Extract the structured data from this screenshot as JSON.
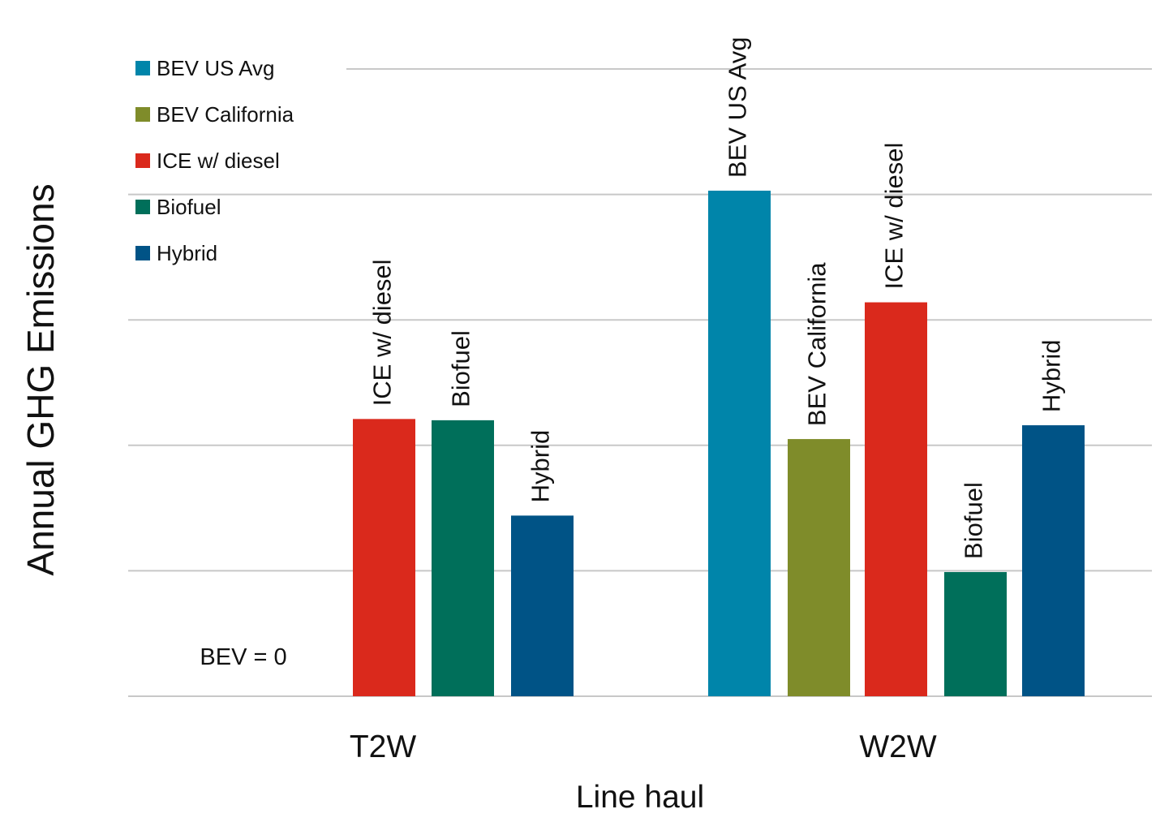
{
  "chart_data": {
    "type": "bar",
    "title": "",
    "ylabel": "Annual GHG Emissions",
    "xlabel": "Line haul",
    "ylim": [
      0,
      5
    ],
    "yticks": [
      0,
      1,
      2,
      3,
      4,
      5
    ],
    "ytick_labels_shown": false,
    "grid": true,
    "legend_position": "top-left",
    "legend": [
      {
        "name": "BEV US Avg",
        "color": "#0085AA"
      },
      {
        "name": "BEV California",
        "color": "#7F8C2A"
      },
      {
        "name": "ICE w/ diesel",
        "color": "#DA291C"
      },
      {
        "name": "Biofuel",
        "color": "#006F5A"
      },
      {
        "name": "Hybrid",
        "color": "#005386"
      }
    ],
    "categories": [
      "T2W",
      "W2W"
    ],
    "groups": [
      {
        "category": "T2W",
        "annotation": "BEV = 0",
        "bars": [
          {
            "series": "ICE w/ diesel",
            "label": "ICE w/ diesel",
            "value": 2.21,
            "color": "#DA291C"
          },
          {
            "series": "Biofuel",
            "label": "Biofuel",
            "value": 2.2,
            "color": "#006F5A"
          },
          {
            "series": "Hybrid",
            "label": "Hybrid",
            "value": 1.44,
            "color": "#005386"
          }
        ]
      },
      {
        "category": "W2W",
        "annotation": "",
        "bars": [
          {
            "series": "BEV US Avg",
            "label": "BEV US Avg",
            "value": 4.03,
            "color": "#0085AA"
          },
          {
            "series": "BEV California",
            "label": "BEV California",
            "value": 2.05,
            "color": "#7F8C2A"
          },
          {
            "series": "ICE w/ diesel",
            "label": "ICE w/ diesel",
            "value": 3.14,
            "color": "#DA291C"
          },
          {
            "series": "Biofuel",
            "label": "Biofuel",
            "value": 0.99,
            "color": "#006F5A"
          },
          {
            "series": "Hybrid",
            "label": "Hybrid",
            "value": 2.16,
            "color": "#005386"
          }
        ]
      }
    ]
  }
}
